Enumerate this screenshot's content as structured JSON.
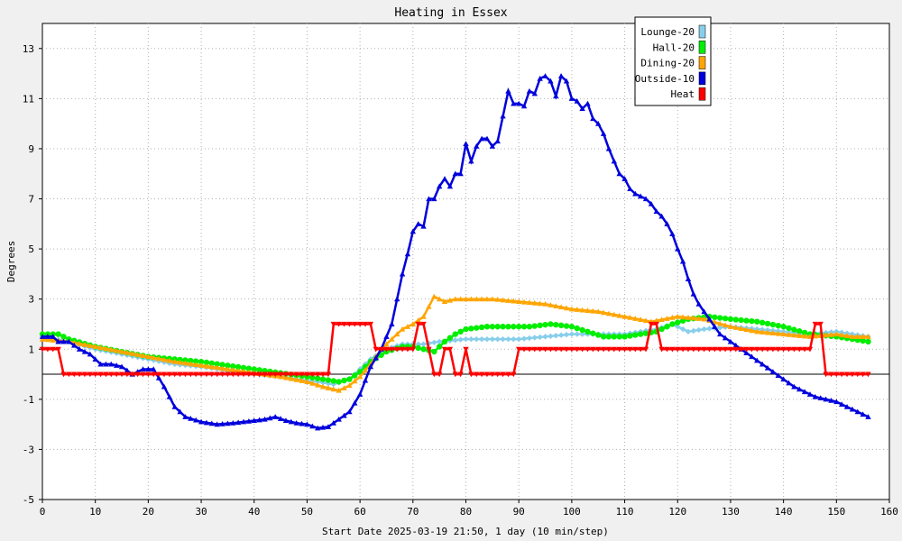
{
  "chart_data": {
    "type": "line",
    "title": "Heating in Essex",
    "xlabel": "Start Date 2025-03-19 21:50, 1 day (10 min/step)",
    "ylabel": "Degrees",
    "xlim": [
      0,
      160
    ],
    "ylim": [
      -5,
      14
    ],
    "xticks": [
      0,
      10,
      20,
      30,
      40,
      50,
      60,
      70,
      80,
      90,
      100,
      110,
      120,
      130,
      140,
      150,
      160
    ],
    "yticks": [
      -5,
      -3,
      -1,
      1,
      3,
      5,
      7,
      9,
      11,
      13
    ],
    "grid": true,
    "zero_line": true,
    "legend_position": "top-right",
    "series": [
      {
        "name": "Lounge-20",
        "color": "#87ceeb",
        "marker": "diamond",
        "points": [
          [
            0,
            1.5
          ],
          [
            5,
            1.3
          ],
          [
            10,
            1.0
          ],
          [
            15,
            0.8
          ],
          [
            20,
            0.6
          ],
          [
            25,
            0.4
          ],
          [
            30,
            0.3
          ],
          [
            35,
            0.15
          ],
          [
            40,
            0.0
          ],
          [
            45,
            -0.1
          ],
          [
            50,
            -0.25
          ],
          [
            52,
            -0.3
          ],
          [
            55,
            -0.4
          ],
          [
            58,
            -0.2
          ],
          [
            60,
            0.2
          ],
          [
            62,
            0.6
          ],
          [
            65,
            1.0
          ],
          [
            68,
            1.2
          ],
          [
            70,
            1.2
          ],
          [
            72,
            1.2
          ],
          [
            75,
            1.3
          ],
          [
            80,
            1.4
          ],
          [
            85,
            1.4
          ],
          [
            90,
            1.4
          ],
          [
            95,
            1.5
          ],
          [
            100,
            1.6
          ],
          [
            105,
            1.6
          ],
          [
            110,
            1.6
          ],
          [
            113,
            1.7
          ],
          [
            116,
            1.8
          ],
          [
            119,
            2.0
          ],
          [
            122,
            1.7
          ],
          [
            125,
            1.8
          ],
          [
            130,
            1.9
          ],
          [
            135,
            1.8
          ],
          [
            140,
            1.7
          ],
          [
            145,
            1.6
          ],
          [
            150,
            1.7
          ],
          [
            153,
            1.6
          ],
          [
            156,
            1.5
          ]
        ]
      },
      {
        "name": "Hall-20",
        "color": "#00ee00",
        "marker": "circle",
        "points": [
          [
            0,
            1.6
          ],
          [
            3,
            1.6
          ],
          [
            5,
            1.4
          ],
          [
            10,
            1.1
          ],
          [
            15,
            0.9
          ],
          [
            20,
            0.7
          ],
          [
            25,
            0.6
          ],
          [
            30,
            0.5
          ],
          [
            35,
            0.35
          ],
          [
            40,
            0.2
          ],
          [
            45,
            0.05
          ],
          [
            50,
            -0.1
          ],
          [
            53,
            -0.2
          ],
          [
            56,
            -0.3
          ],
          [
            58,
            -0.2
          ],
          [
            60,
            0.1
          ],
          [
            62,
            0.5
          ],
          [
            65,
            0.9
          ],
          [
            68,
            1.1
          ],
          [
            70,
            1.1
          ],
          [
            72,
            1.0
          ],
          [
            74,
            0.9
          ],
          [
            76,
            1.3
          ],
          [
            78,
            1.6
          ],
          [
            80,
            1.8
          ],
          [
            84,
            1.9
          ],
          [
            88,
            1.9
          ],
          [
            92,
            1.9
          ],
          [
            96,
            2.0
          ],
          [
            100,
            1.9
          ],
          [
            103,
            1.7
          ],
          [
            106,
            1.5
          ],
          [
            110,
            1.5
          ],
          [
            113,
            1.6
          ],
          [
            116,
            1.7
          ],
          [
            119,
            2.0
          ],
          [
            122,
            2.2
          ],
          [
            126,
            2.3
          ],
          [
            130,
            2.2
          ],
          [
            135,
            2.1
          ],
          [
            140,
            1.9
          ],
          [
            145,
            1.6
          ],
          [
            150,
            1.5
          ],
          [
            153,
            1.4
          ],
          [
            156,
            1.3
          ]
        ]
      },
      {
        "name": "Dining-20",
        "color": "#ffa500",
        "marker": "triangle",
        "points": [
          [
            0,
            1.4
          ],
          [
            5,
            1.3
          ],
          [
            10,
            1.1
          ],
          [
            15,
            0.9
          ],
          [
            20,
            0.7
          ],
          [
            25,
            0.5
          ],
          [
            30,
            0.35
          ],
          [
            35,
            0.2
          ],
          [
            40,
            0.05
          ],
          [
            45,
            -0.1
          ],
          [
            50,
            -0.3
          ],
          [
            53,
            -0.5
          ],
          [
            56,
            -0.65
          ],
          [
            58,
            -0.45
          ],
          [
            60,
            -0.1
          ],
          [
            62,
            0.4
          ],
          [
            64,
            1.0
          ],
          [
            66,
            1.4
          ],
          [
            68,
            1.8
          ],
          [
            70,
            2.0
          ],
          [
            72,
            2.3
          ],
          [
            74,
            3.1
          ],
          [
            76,
            2.9
          ],
          [
            78,
            3.0
          ],
          [
            80,
            3.0
          ],
          [
            85,
            3.0
          ],
          [
            90,
            2.9
          ],
          [
            95,
            2.8
          ],
          [
            100,
            2.6
          ],
          [
            105,
            2.5
          ],
          [
            110,
            2.3
          ],
          [
            115,
            2.1
          ],
          [
            120,
            2.3
          ],
          [
            125,
            2.2
          ],
          [
            130,
            1.9
          ],
          [
            135,
            1.7
          ],
          [
            140,
            1.6
          ],
          [
            145,
            1.5
          ],
          [
            150,
            1.6
          ],
          [
            153,
            1.5
          ],
          [
            156,
            1.5
          ]
        ]
      },
      {
        "name": "Outside-10",
        "color": "#0000dd",
        "marker": "triangle",
        "points": [
          [
            0,
            1.5
          ],
          [
            2,
            1.5
          ],
          [
            3,
            1.3
          ],
          [
            5,
            1.3
          ],
          [
            7,
            1.0
          ],
          [
            9,
            0.8
          ],
          [
            11,
            0.4
          ],
          [
            13,
            0.4
          ],
          [
            15,
            0.3
          ],
          [
            17,
            0.0
          ],
          [
            19,
            0.2
          ],
          [
            21,
            0.2
          ],
          [
            23,
            -0.5
          ],
          [
            25,
            -1.3
          ],
          [
            27,
            -1.7
          ],
          [
            30,
            -1.9
          ],
          [
            33,
            -2.0
          ],
          [
            36,
            -1.95
          ],
          [
            38,
            -1.9
          ],
          [
            40,
            -1.85
          ],
          [
            42,
            -1.8
          ],
          [
            44,
            -1.7
          ],
          [
            46,
            -1.85
          ],
          [
            48,
            -1.95
          ],
          [
            50,
            -2.0
          ],
          [
            52,
            -2.15
          ],
          [
            54,
            -2.1
          ],
          [
            56,
            -1.8
          ],
          [
            58,
            -1.5
          ],
          [
            60,
            -0.8
          ],
          [
            62,
            0.3
          ],
          [
            64,
            1.0
          ],
          [
            66,
            2.0
          ],
          [
            67,
            3.0
          ],
          [
            68,
            4.0
          ],
          [
            69,
            4.8
          ],
          [
            70,
            5.7
          ],
          [
            71,
            6.0
          ],
          [
            72,
            5.9
          ],
          [
            73,
            7.0
          ],
          [
            74,
            7.0
          ],
          [
            75,
            7.5
          ],
          [
            76,
            7.8
          ],
          [
            77,
            7.5
          ],
          [
            78,
            8.0
          ],
          [
            79,
            8.0
          ],
          [
            80,
            9.2
          ],
          [
            81,
            8.5
          ],
          [
            82,
            9.1
          ],
          [
            83,
            9.4
          ],
          [
            84,
            9.4
          ],
          [
            85,
            9.1
          ],
          [
            86,
            9.3
          ],
          [
            87,
            10.3
          ],
          [
            88,
            11.3
          ],
          [
            89,
            10.8
          ],
          [
            90,
            10.8
          ],
          [
            91,
            10.7
          ],
          [
            92,
            11.3
          ],
          [
            93,
            11.2
          ],
          [
            94,
            11.8
          ],
          [
            95,
            11.9
          ],
          [
            96,
            11.7
          ],
          [
            97,
            11.1
          ],
          [
            98,
            11.9
          ],
          [
            99,
            11.7
          ],
          [
            100,
            11.0
          ],
          [
            101,
            10.9
          ],
          [
            102,
            10.6
          ],
          [
            103,
            10.8
          ],
          [
            104,
            10.2
          ],
          [
            105,
            10.0
          ],
          [
            106,
            9.6
          ],
          [
            107,
            9.0
          ],
          [
            108,
            8.5
          ],
          [
            109,
            8.0
          ],
          [
            110,
            7.8
          ],
          [
            111,
            7.4
          ],
          [
            112,
            7.2
          ],
          [
            113,
            7.1
          ],
          [
            114,
            7.0
          ],
          [
            115,
            6.8
          ],
          [
            116,
            6.5
          ],
          [
            117,
            6.3
          ],
          [
            118,
            6.0
          ],
          [
            119,
            5.6
          ],
          [
            120,
            5.0
          ],
          [
            121,
            4.5
          ],
          [
            122,
            3.8
          ],
          [
            123,
            3.2
          ],
          [
            124,
            2.8
          ],
          [
            125,
            2.5
          ],
          [
            126,
            2.2
          ],
          [
            127,
            1.9
          ],
          [
            128,
            1.6
          ],
          [
            130,
            1.3
          ],
          [
            132,
            1.0
          ],
          [
            134,
            0.7
          ],
          [
            136,
            0.4
          ],
          [
            138,
            0.1
          ],
          [
            140,
            -0.2
          ],
          [
            142,
            -0.5
          ],
          [
            144,
            -0.7
          ],
          [
            146,
            -0.9
          ],
          [
            148,
            -1.0
          ],
          [
            150,
            -1.1
          ],
          [
            152,
            -1.3
          ],
          [
            154,
            -1.5
          ],
          [
            156,
            -1.7
          ]
        ]
      },
      {
        "name": "Heat",
        "color": "#ff0000",
        "marker": "triangle-down",
        "points": [
          [
            0,
            1
          ],
          [
            3,
            1
          ],
          [
            4,
            0
          ],
          [
            54,
            0
          ],
          [
            55,
            2
          ],
          [
            62,
            2
          ],
          [
            63,
            1
          ],
          [
            70,
            1
          ],
          [
            71,
            2
          ],
          [
            72,
            2
          ],
          [
            74,
            0
          ],
          [
            75,
            0
          ],
          [
            76,
            1
          ],
          [
            77,
            1
          ],
          [
            78,
            0
          ],
          [
            79,
            0
          ],
          [
            80,
            1
          ],
          [
            81,
            0
          ],
          [
            89,
            0
          ],
          [
            90,
            1
          ],
          [
            114,
            1
          ],
          [
            115,
            2
          ],
          [
            116,
            2
          ],
          [
            117,
            1
          ],
          [
            145,
            1
          ],
          [
            146,
            2
          ],
          [
            147,
            2
          ],
          [
            148,
            0
          ],
          [
            156,
            0
          ]
        ]
      }
    ]
  }
}
